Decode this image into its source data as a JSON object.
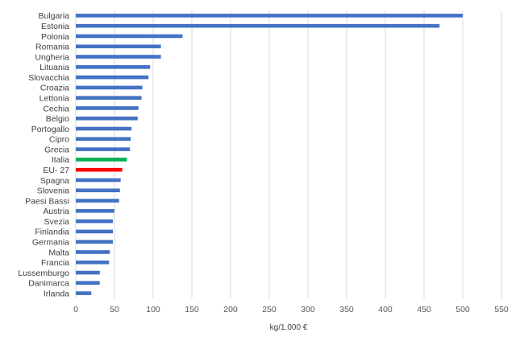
{
  "chart_data": {
    "type": "bar",
    "orientation": "horizontal",
    "title": "",
    "xlabel": "kg/1.000 €",
    "ylabel": "",
    "xlim": [
      0,
      550
    ],
    "xticks": [
      0,
      50,
      100,
      150,
      200,
      250,
      300,
      350,
      400,
      450,
      500,
      550
    ],
    "grid": "vertical",
    "legend": "none",
    "categories": [
      "Bulgaria",
      "Estonia",
      "Polonia",
      "Romania",
      "Ungheria",
      "Lituania",
      "Slovacchia",
      "Croazia",
      "Lettonia",
      "Cechia",
      "Belgio",
      "Portogallo",
      "Cipro",
      "Grecia",
      "Italia",
      "EU- 27",
      "Spagna",
      "Slovenia",
      "Paesi Bassi",
      "Austria",
      "Svezia",
      "Finlandia",
      "Germania",
      "Malta",
      "Francia",
      "Lussemburgo",
      "Danimarca",
      "Irlanda"
    ],
    "values": [
      500,
      470,
      138,
      110,
      110,
      96,
      94,
      86,
      85,
      81,
      80,
      72,
      71,
      70,
      66,
      60,
      58,
      57,
      56,
      50,
      48,
      48,
      48,
      44,
      43,
      31,
      31,
      20
    ],
    "colors": {
      "default": "#4472C4",
      "Italia": "#00B050",
      "EU- 27": "#FF0000"
    }
  }
}
